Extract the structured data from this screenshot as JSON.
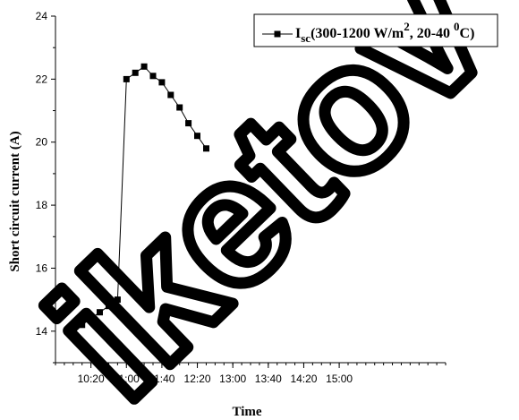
{
  "chart_data": {
    "type": "line",
    "title": "",
    "xlabel": "Time",
    "ylabel": "Short circuit current (A)",
    "x_tick_labels": [
      "10:20",
      "11:00",
      "11:40",
      "12:20",
      "13:00",
      "13:40",
      "14:20",
      "15:00"
    ],
    "x_range": [
      "09:40",
      "17:00"
    ],
    "ylim": [
      13,
      24
    ],
    "y_ticks": [
      14,
      16,
      18,
      20,
      22,
      24
    ],
    "grid": false,
    "legend_position": "top-right",
    "legend_label": {
      "prefix": "I",
      "subscript": "sc",
      "body": "(300-1200 W/m",
      "superscript": "2",
      "middle": ", 20-40 ",
      "superscript2": "0",
      "suffix": "C)"
    },
    "series": [
      {
        "marker": "square",
        "color": "#000000",
        "x": [
          "10:00",
          "10:10",
          "10:20",
          "10:30",
          "10:40",
          "10:50",
          "11:00",
          "11:10",
          "11:20",
          "11:30",
          "11:40",
          "11:50",
          "12:00",
          "12:10",
          "12:20",
          "12:30",
          "12:40",
          "12:50",
          "13:00"
        ],
        "values": [
          14.0,
          14.2,
          14.4,
          14.6,
          14.8,
          15.0,
          22.0,
          22.2,
          22.4,
          22.1,
          21.9,
          21.5,
          21.1,
          20.6,
          20.2,
          19.8,
          null,
          null,
          null
        ]
      }
    ]
  },
  "watermark": "iketov"
}
